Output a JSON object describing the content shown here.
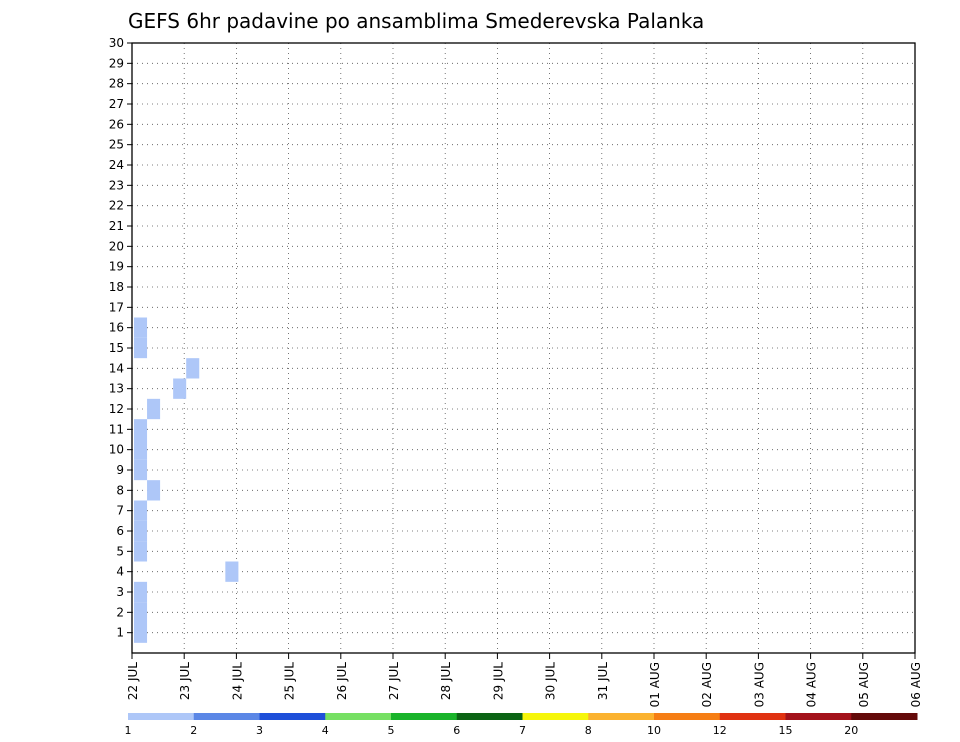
{
  "chart_data": {
    "type": "heatmap",
    "title": "GEFS 6hr padavine po ansamblima Smederevska Palanka",
    "xlabel": "",
    "ylabel": "",
    "x_ticks": [
      "22 JUL",
      "23 JUL",
      "24 JUL",
      "25 JUL",
      "26 JUL",
      "27 JUL",
      "28 JUL",
      "29 JUL",
      "30 JUL",
      "31 JUL",
      "01 AUG",
      "02 AUG",
      "03 AUG",
      "04 AUG",
      "05 AUG",
      "06 AUG"
    ],
    "x_range": [
      "22 JUL 00",
      "06 AUG 00"
    ],
    "time_step_hours": 6,
    "y_ticks": [
      1,
      2,
      3,
      4,
      5,
      6,
      7,
      8,
      9,
      10,
      11,
      12,
      13,
      14,
      15,
      16,
      17,
      18,
      19,
      20,
      21,
      22,
      23,
      24,
      25,
      26,
      27,
      28,
      29,
      30
    ],
    "y_range": [
      0,
      30
    ],
    "grid": true,
    "colorbar": {
      "labels": [
        "1",
        "2",
        "3",
        "4",
        "5",
        "6",
        "7",
        "8",
        "10",
        "12",
        "15",
        "20"
      ],
      "colors": [
        "#aec7f8",
        "#5b87e6",
        "#1e4fd9",
        "#76e063",
        "#19b42a",
        "#0b6414",
        "#f6f60a",
        "#fbb22f",
        "#f67e14",
        "#e03211",
        "#a3121b",
        "#640a0a"
      ]
    },
    "cells": [
      {
        "d": "22 JUL",
        "h": 0,
        "m": 1
      },
      {
        "d": "22 JUL",
        "h": 0,
        "m": 2
      },
      {
        "d": "22 JUL",
        "h": 0,
        "m": 3
      },
      {
        "d": "23 JUL",
        "h": 18,
        "m": 4
      },
      {
        "d": "22 JUL",
        "h": 0,
        "m": 5
      },
      {
        "d": "22 JUL",
        "h": 0,
        "m": 6
      },
      {
        "d": "22 JUL",
        "h": 0,
        "m": 7
      },
      {
        "d": "22 JUL",
        "h": 6,
        "m": 8
      },
      {
        "d": "22 JUL",
        "h": 0,
        "m": 9
      },
      {
        "d": "22 JUL",
        "h": 0,
        "m": 10
      },
      {
        "d": "22 JUL",
        "h": 0,
        "m": 11
      },
      {
        "d": "22 JUL",
        "h": 6,
        "m": 12
      },
      {
        "d": "22 JUL",
        "h": 18,
        "m": 13
      },
      {
        "d": "23 JUL",
        "h": 0,
        "m": 14
      },
      {
        "d": "22 JUL",
        "h": 0,
        "m": 15
      },
      {
        "d": "22 JUL",
        "h": 0,
        "m": 16
      }
    ]
  }
}
